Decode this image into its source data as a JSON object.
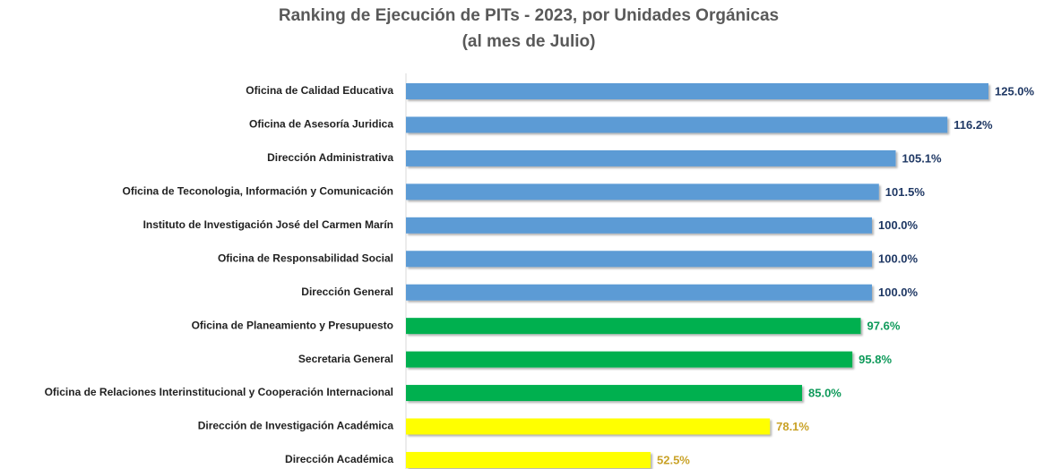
{
  "chart_data": {
    "type": "bar",
    "orientation": "horizontal",
    "title": "Ranking de Ejecución de PITs - 2023, por Unidades Orgánicas",
    "subtitle": "(al mes de Julio)",
    "categories": [
      "Oficina de Calidad Educativa",
      "Oficina de Asesoría Juridica",
      "Dirección Administrativa",
      "Oficina de Teconologia, Información y Comunicación",
      "Instituto de Investigación José del Carmen Marín",
      "Oficina de Responsabilidad Social",
      "Dirección General",
      "Oficina de Planeamiento y Presupuesto",
      "Secretaria General",
      "Oficina de Relaciones Interinstitucional y Cooperación Internacional",
      "Dirección de Investigación Académica",
      "Dirección Académica"
    ],
    "values": [
      125.0,
      116.2,
      105.1,
      101.5,
      100.0,
      100.0,
      100.0,
      97.6,
      95.8,
      85.0,
      78.1,
      52.5
    ],
    "value_labels": [
      "125.0%",
      "116.2%",
      "105.1%",
      "101.5%",
      "100.0%",
      "100.0%",
      "100.0%",
      "97.6%",
      "95.8%",
      "85.0%",
      "78.1%",
      "52.5%"
    ],
    "colors": [
      "#5b9bd5",
      "#5b9bd5",
      "#5b9bd5",
      "#5b9bd5",
      "#5b9bd5",
      "#5b9bd5",
      "#5b9bd5",
      "#00b050",
      "#00b050",
      "#00b050",
      "#ffff00",
      "#ffff00"
    ],
    "label_colors": [
      "#1f3864",
      "#1f3864",
      "#1f3864",
      "#1f3864",
      "#1f3864",
      "#1f3864",
      "#1f3864",
      "#0e9a5a",
      "#0e9a5a",
      "#0e9a5a",
      "#c9a227",
      "#c9a227"
    ],
    "xlim": [
      0,
      125
    ]
  }
}
